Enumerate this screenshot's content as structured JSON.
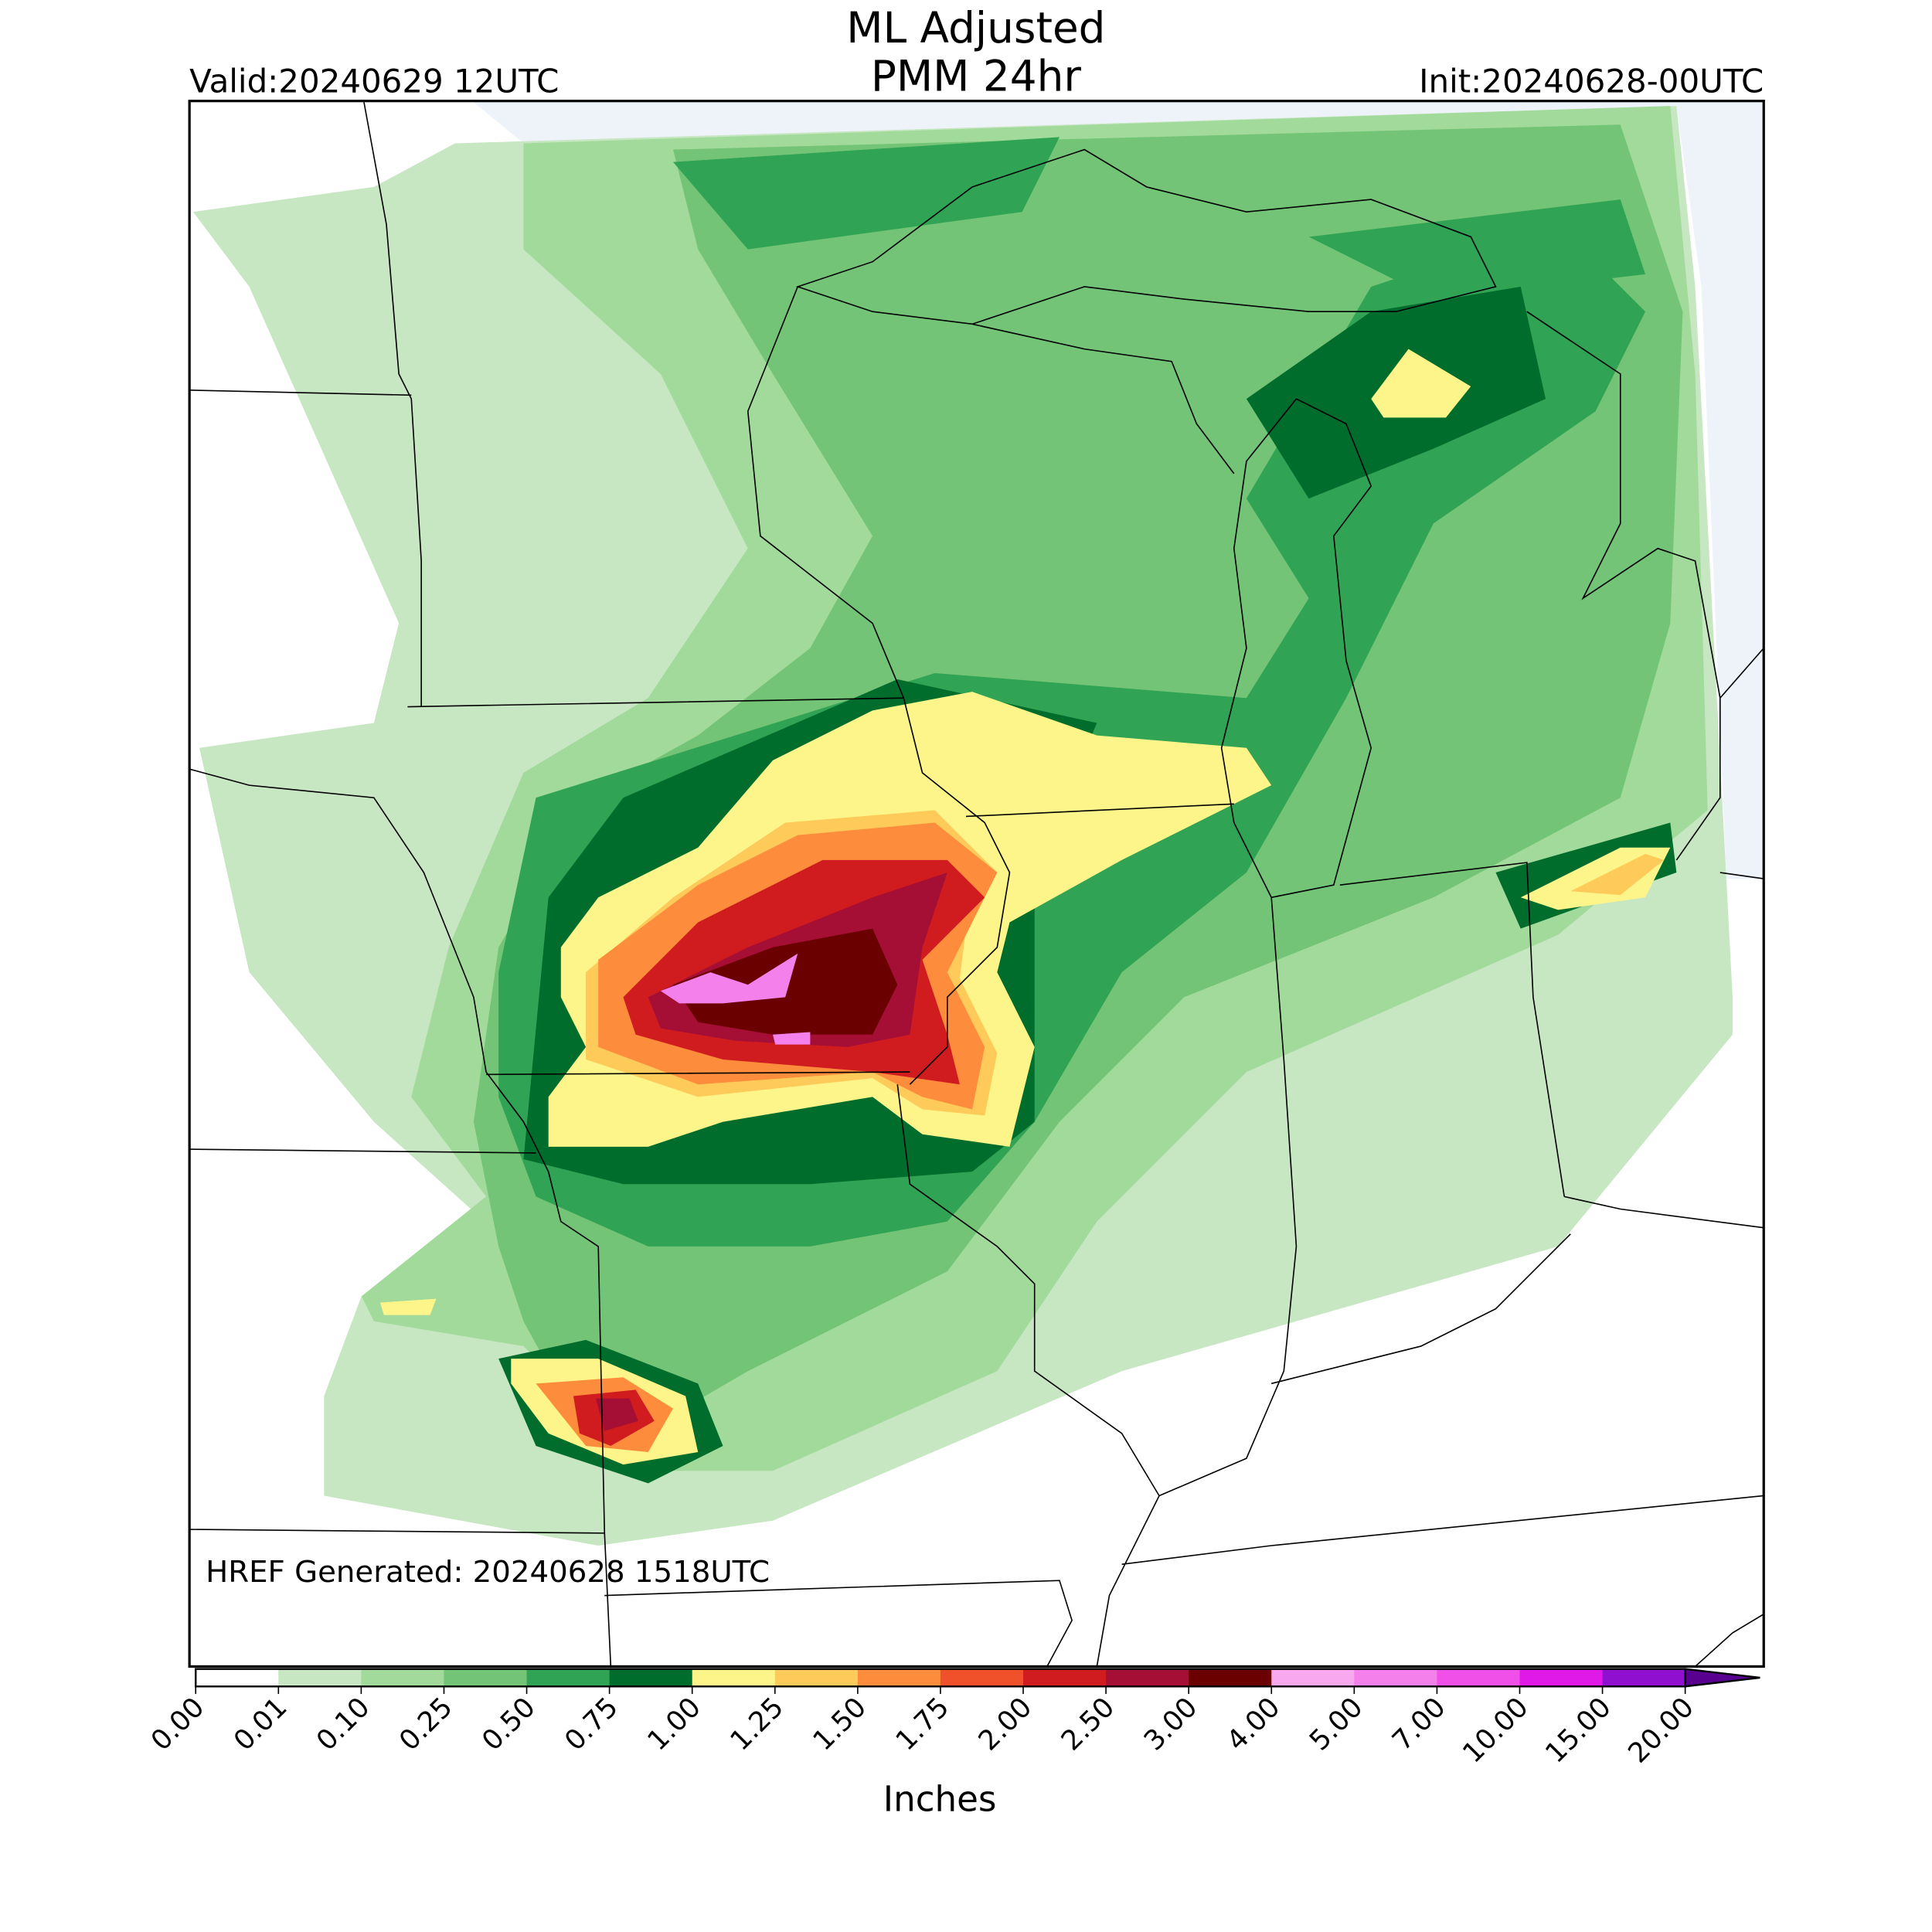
{
  "header": {
    "title_lines": [
      "ML Adjusted",
      "PMM 24hr"
    ],
    "valid": "Valid:20240629 12UTC",
    "init": "Init:20240628-00UTC"
  },
  "map": {
    "annotation": "HREF Generated: 20240628 1518UTC"
  },
  "colorbar": {
    "ticks": [
      {
        "value": 0,
        "label": "0.00"
      },
      {
        "value": 0.01,
        "label": "0.01"
      },
      {
        "value": 0.1,
        "label": "0.10"
      },
      {
        "value": 0.25,
        "label": "0.25"
      },
      {
        "value": 0.5,
        "label": "0.50"
      },
      {
        "value": 0.75,
        "label": "0.75"
      },
      {
        "value": 1,
        "label": "1.00"
      },
      {
        "value": 1.25,
        "label": "1.25"
      },
      {
        "value": 1.5,
        "label": "1.50"
      },
      {
        "value": 1.75,
        "label": "1.75"
      },
      {
        "value": 2,
        "label": "2.00"
      },
      {
        "value": 2.5,
        "label": "2.50"
      },
      {
        "value": 3,
        "label": "3.00"
      },
      {
        "value": 4,
        "label": "4.00"
      },
      {
        "value": 5,
        "label": "5.00"
      },
      {
        "value": 7,
        "label": "7.00"
      },
      {
        "value": 10,
        "label": "10.00"
      },
      {
        "value": 15,
        "label": "15.00"
      },
      {
        "value": 20,
        "label": "20.00"
      }
    ],
    "colors": [
      "#ffffff",
      "#c7e6c2",
      "#a1da9a",
      "#73c476",
      "#31a354",
      "#006d2c",
      "#fef58a",
      "#fecb5a",
      "#fd8d3c",
      "#f0502a",
      "#d01c1e",
      "#a50f35",
      "#6b0000",
      "#f7a8ef",
      "#f480ec",
      "#f050e8",
      "#e018e8",
      "#9010d0"
    ],
    "extend_color": "#5a0090",
    "label": "Inches"
  }
}
